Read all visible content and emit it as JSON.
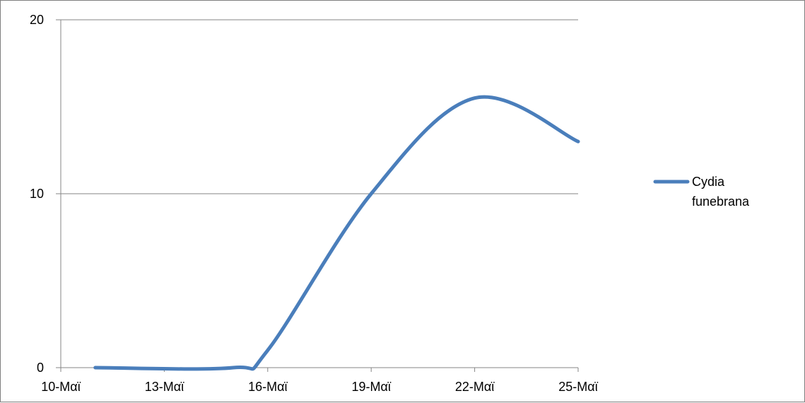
{
  "chart_data": {
    "type": "line",
    "title": "",
    "xlabel": "",
    "ylabel": "",
    "x_ticks": [
      "10-Μαϊ",
      "13-Μαϊ",
      "16-Μαϊ",
      "19-Μαϊ",
      "22-Μαϊ",
      "25-Μαϊ"
    ],
    "x_range": [
      "10-Μαϊ",
      "25-Μαϊ"
    ],
    "ylim": [
      0,
      20
    ],
    "y_ticks": [
      "0",
      "10",
      "20"
    ],
    "grid": "horizontal",
    "legend_position": "right",
    "legend_lines": [
      "Cydia",
      "funebrana"
    ],
    "smooth": true,
    "series": [
      {
        "name": "Cydia funebrana",
        "color": "#4a7ebb",
        "points": [
          {
            "x": "11-Μαϊ",
            "y": 0
          },
          {
            "x": "15-Μαϊ",
            "y": 0
          },
          {
            "x": "16-Μαϊ",
            "y": 1
          },
          {
            "x": "19-Μαϊ",
            "y": 10
          },
          {
            "x": "22-Μαϊ",
            "y": 15.5
          },
          {
            "x": "25-Μαϊ",
            "y": 13
          }
        ]
      }
    ]
  }
}
